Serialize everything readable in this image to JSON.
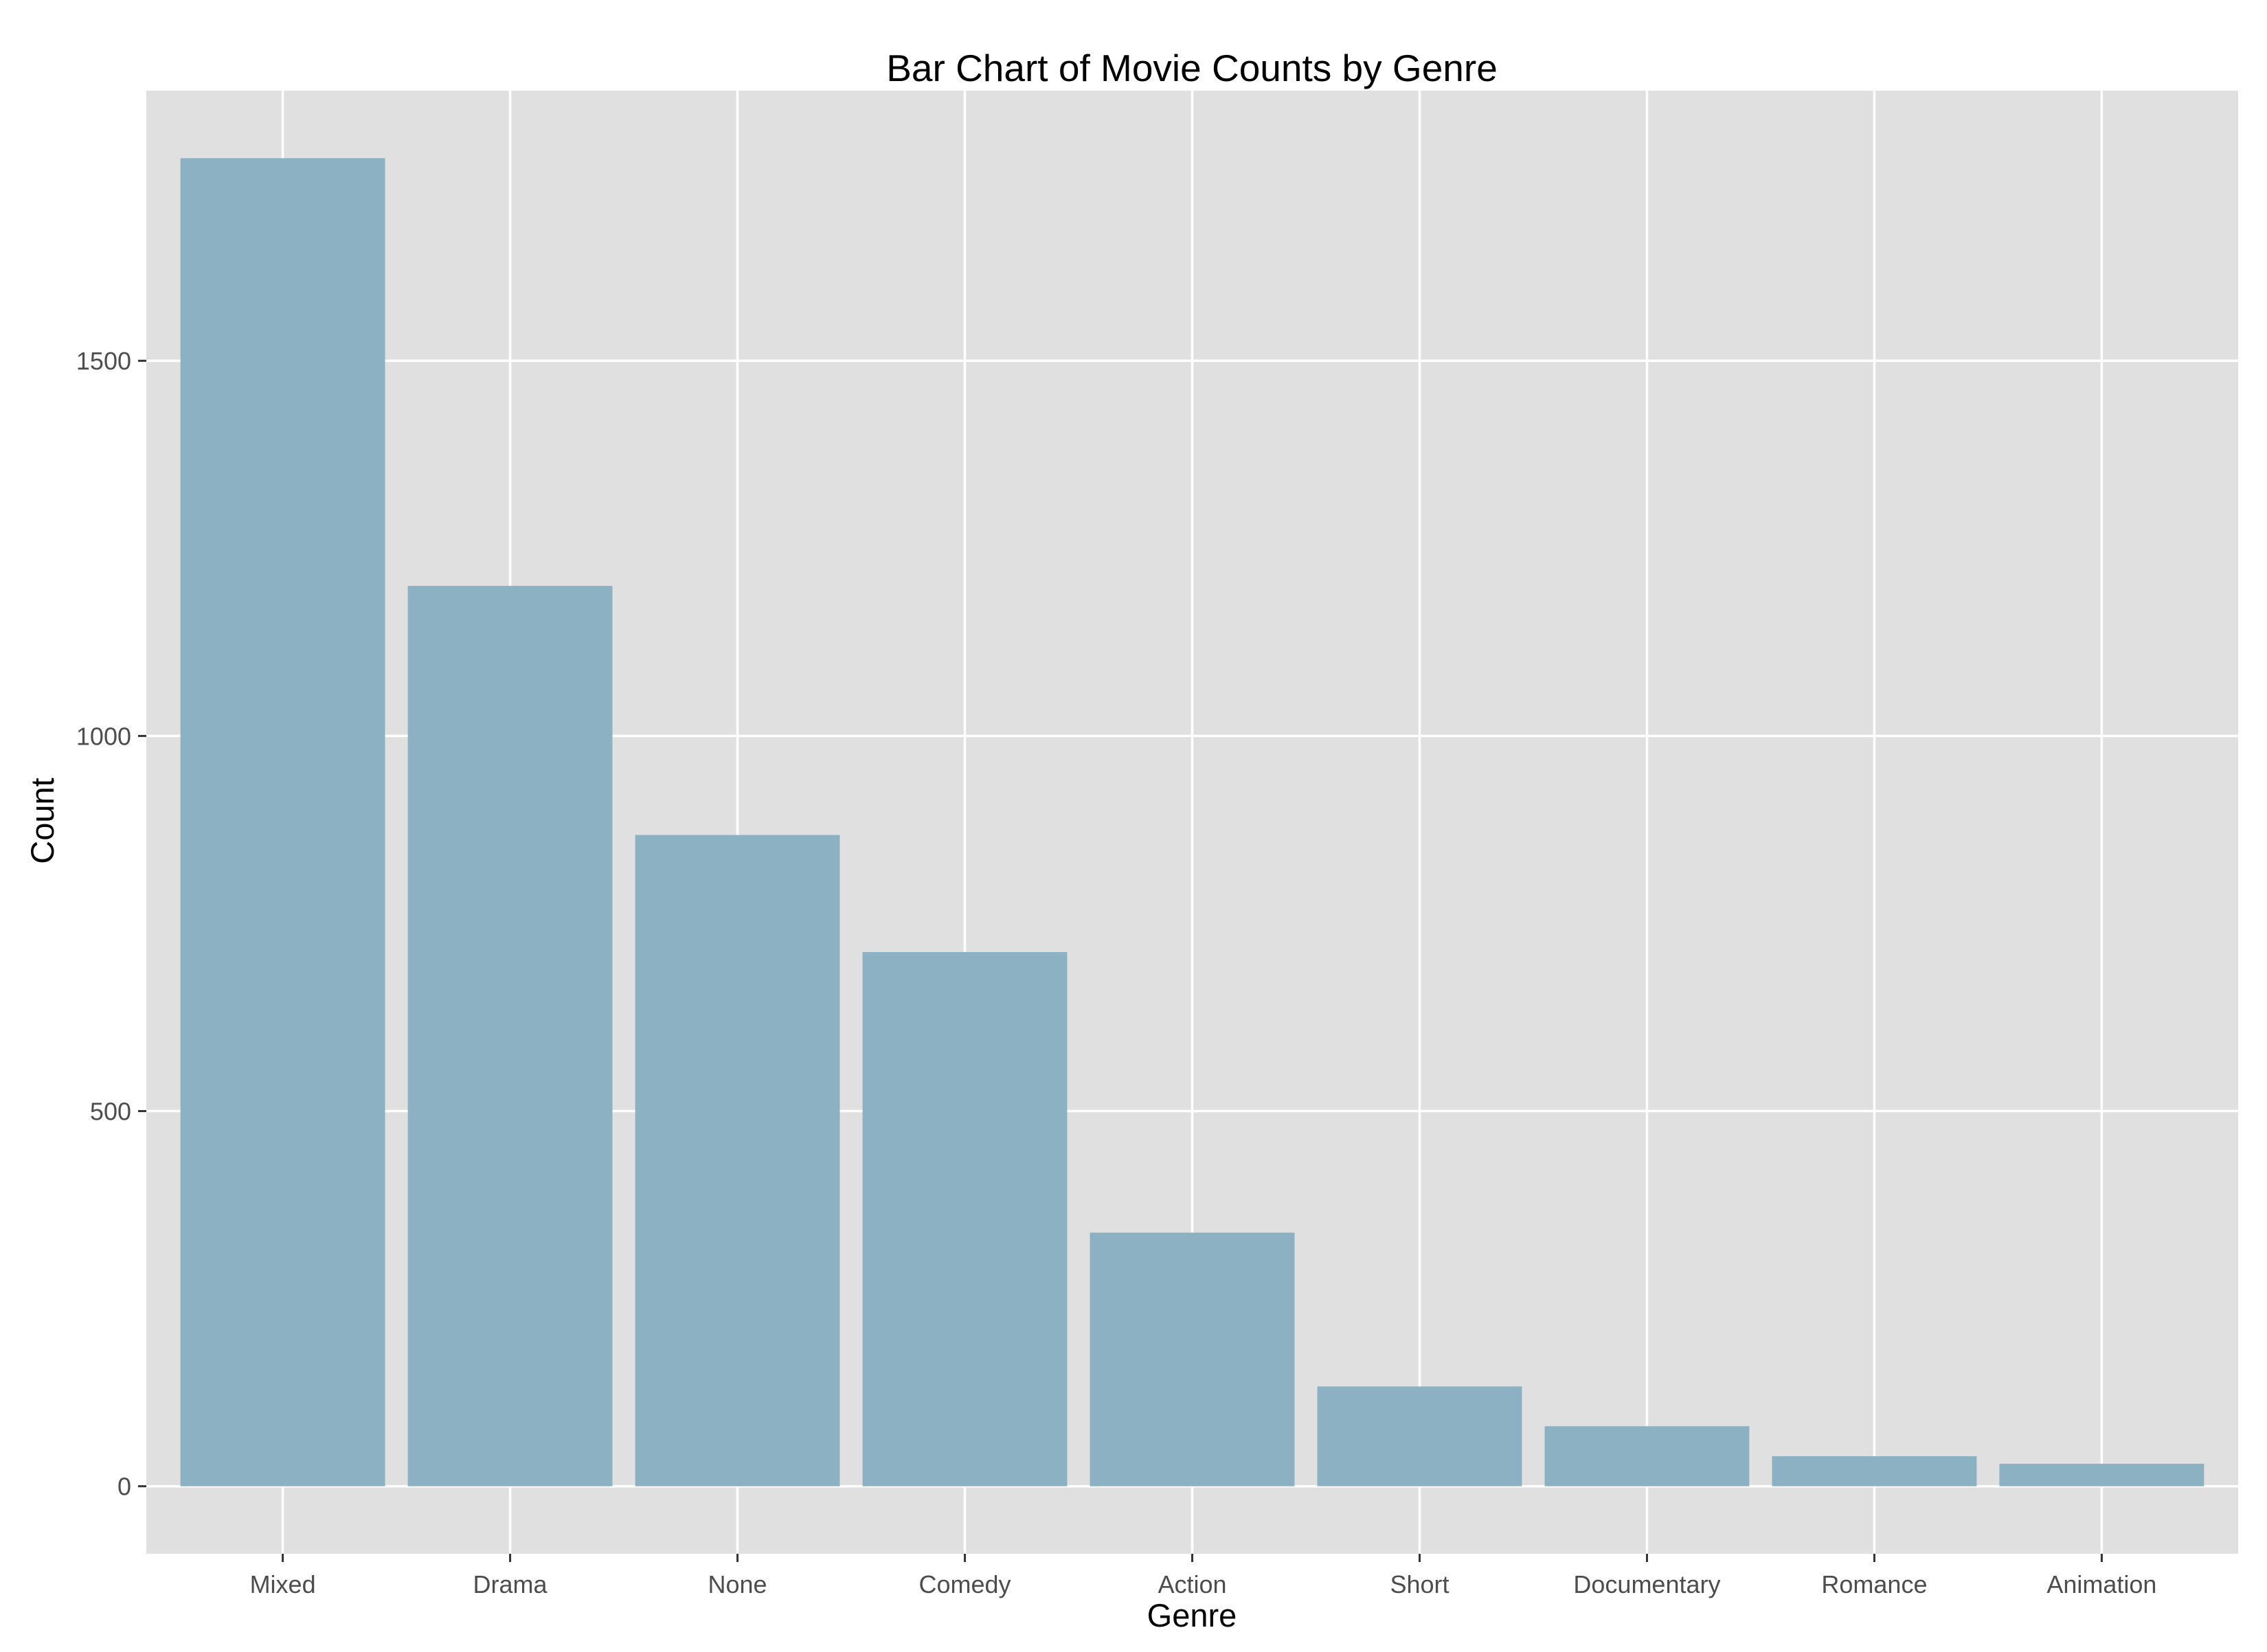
{
  "colors": {
    "panel_background": "#e0e0e0",
    "grid": "#ffffff",
    "bar_fill": "#8bb1c2",
    "tick_text": "#4d4d4d",
    "axis_ticks": "#333333"
  },
  "chart_data": {
    "type": "bar",
    "title": "Bar Chart of Movie Counts by Genre",
    "xlabel": "Genre",
    "ylabel": "Count",
    "categories": [
      "Mixed",
      "Drama",
      "None",
      "Comedy",
      "Action",
      "Short",
      "Documentary",
      "Romance",
      "Animation"
    ],
    "values": [
      1770,
      1200,
      868,
      712,
      338,
      133,
      80,
      40,
      30
    ],
    "ylim": [
      -90,
      1860
    ],
    "yticks": [
      0,
      500,
      1000,
      1500
    ],
    "ytick_labels": [
      "0",
      "500",
      "1000",
      "1500"
    ],
    "grid": true,
    "legend": "none"
  }
}
